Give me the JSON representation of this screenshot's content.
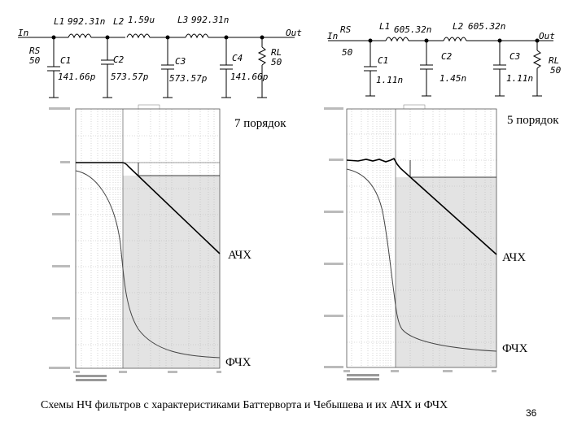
{
  "schematic_left": {
    "in_label": "In",
    "out_label": "Out",
    "rs_name": "RS",
    "rs_value": "50",
    "rl_name": "RL",
    "rl_value": "50",
    "inductors": [
      {
        "name": "L1",
        "value": "992.31n"
      },
      {
        "name": "L2",
        "value": "1.59u"
      },
      {
        "name": "L3",
        "value": "992.31n"
      }
    ],
    "capacitors": [
      {
        "name": "C1",
        "value": "141.66p"
      },
      {
        "name": "C2",
        "value": "573.57p"
      },
      {
        "name": "C3",
        "value": "573.57p"
      },
      {
        "name": "C4",
        "value": "141.66p"
      }
    ]
  },
  "schematic_right": {
    "in_label": "In",
    "out_label": "Out",
    "rs_name": "RS",
    "rs_value": "50",
    "rl_name": "RL",
    "rl_value": "50",
    "inductors": [
      {
        "name": "L1",
        "value": "605.32n"
      },
      {
        "name": "L2",
        "value": "605.32n"
      }
    ],
    "capacitors": [
      {
        "name": "C1",
        "value": "1.11n"
      },
      {
        "name": "C2",
        "value": "1.45n"
      },
      {
        "name": "C3",
        "value": "1.11n"
      }
    ]
  },
  "plot_left": {
    "order_label": "7 порядок",
    "ach_label": "АЧХ",
    "fch_label": "ФЧХ"
  },
  "plot_right": {
    "order_label": "5 порядок",
    "ach_label": "АЧХ",
    "fch_label": "ФЧХ"
  },
  "caption": "Схемы НЧ фильтров с характеристиками Баттерворта и Чебышева и их АЧХ и ФЧХ",
  "page_number": "36"
}
